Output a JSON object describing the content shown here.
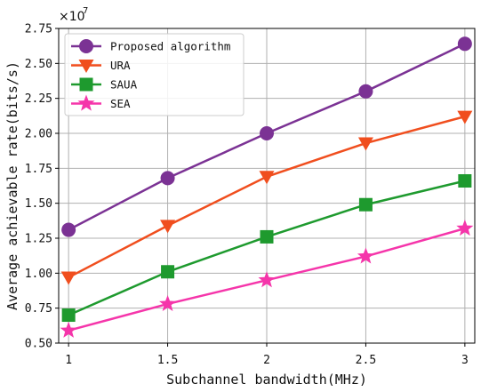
{
  "chart_data": {
    "type": "line",
    "xlabel": "Subchannel bandwidth(MHz)",
    "ylabel": "Average achievable rate(bits/s)",
    "x": [
      1,
      1.5,
      2,
      2.5,
      3
    ],
    "x_tick_labels": [
      "1",
      "1.5",
      "2",
      "2.5",
      "3"
    ],
    "xlim": [
      0.95,
      3.05
    ],
    "y_tick_values": [
      0.5,
      0.75,
      1.0,
      1.25,
      1.5,
      1.75,
      2.0,
      2.25,
      2.5,
      2.75
    ],
    "y_tick_labels": [
      "0.50",
      "0.75",
      "1.00",
      "1.25",
      "1.50",
      "1.75",
      "2.00",
      "2.25",
      "2.50",
      "2.75"
    ],
    "ylim": [
      0.5,
      2.75
    ],
    "y_scale_base": "×10",
    "y_scale_exponent": "7",
    "grid": true,
    "legend_position": "top-left",
    "series": [
      {
        "name": "Proposed algorithm",
        "values": [
          1.31,
          1.68,
          2.0,
          2.3,
          2.64
        ],
        "color": "#7B3294",
        "marker": "circle"
      },
      {
        "name": "URA",
        "values": [
          0.97,
          1.34,
          1.69,
          1.93,
          2.12
        ],
        "color": "#F04E1E",
        "marker": "triangle-down"
      },
      {
        "name": "SAUA",
        "values": [
          0.7,
          1.01,
          1.26,
          1.49,
          1.66
        ],
        "color": "#1E9A2E",
        "marker": "square"
      },
      {
        "name": "SEA",
        "values": [
          0.59,
          0.78,
          0.95,
          1.12,
          1.32
        ],
        "color": "#F535AA",
        "marker": "star"
      }
    ]
  }
}
